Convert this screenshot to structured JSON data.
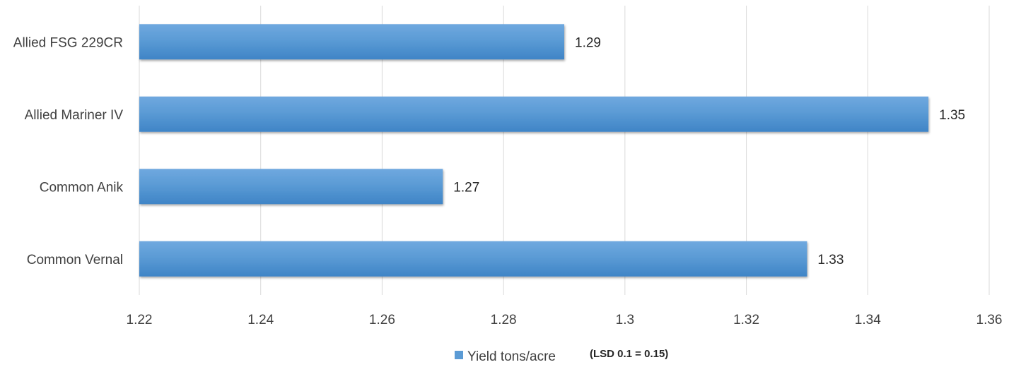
{
  "chart_data": {
    "type": "bar",
    "orientation": "horizontal",
    "categories": [
      "Allied FSG 229CR",
      "Allied Mariner IV",
      "Common Anik",
      "Common Vernal"
    ],
    "series": [
      {
        "name": "Yield tons/acre",
        "values": [
          1.29,
          1.35,
          1.27,
          1.33
        ]
      }
    ],
    "xticks": [
      "1.22",
      "1.24",
      "1.26",
      "1.28",
      "1.3",
      "1.32",
      "1.34",
      "1.36"
    ],
    "xlim": [
      1.22,
      1.36
    ],
    "grid": true,
    "legend_position": "bottom",
    "note": "(LSD 0.1 = 0.15)",
    "bar_color": "#5b9bd5",
    "bar_color_light": "#6fa8df",
    "bar_color_dark": "#3f84c6"
  }
}
